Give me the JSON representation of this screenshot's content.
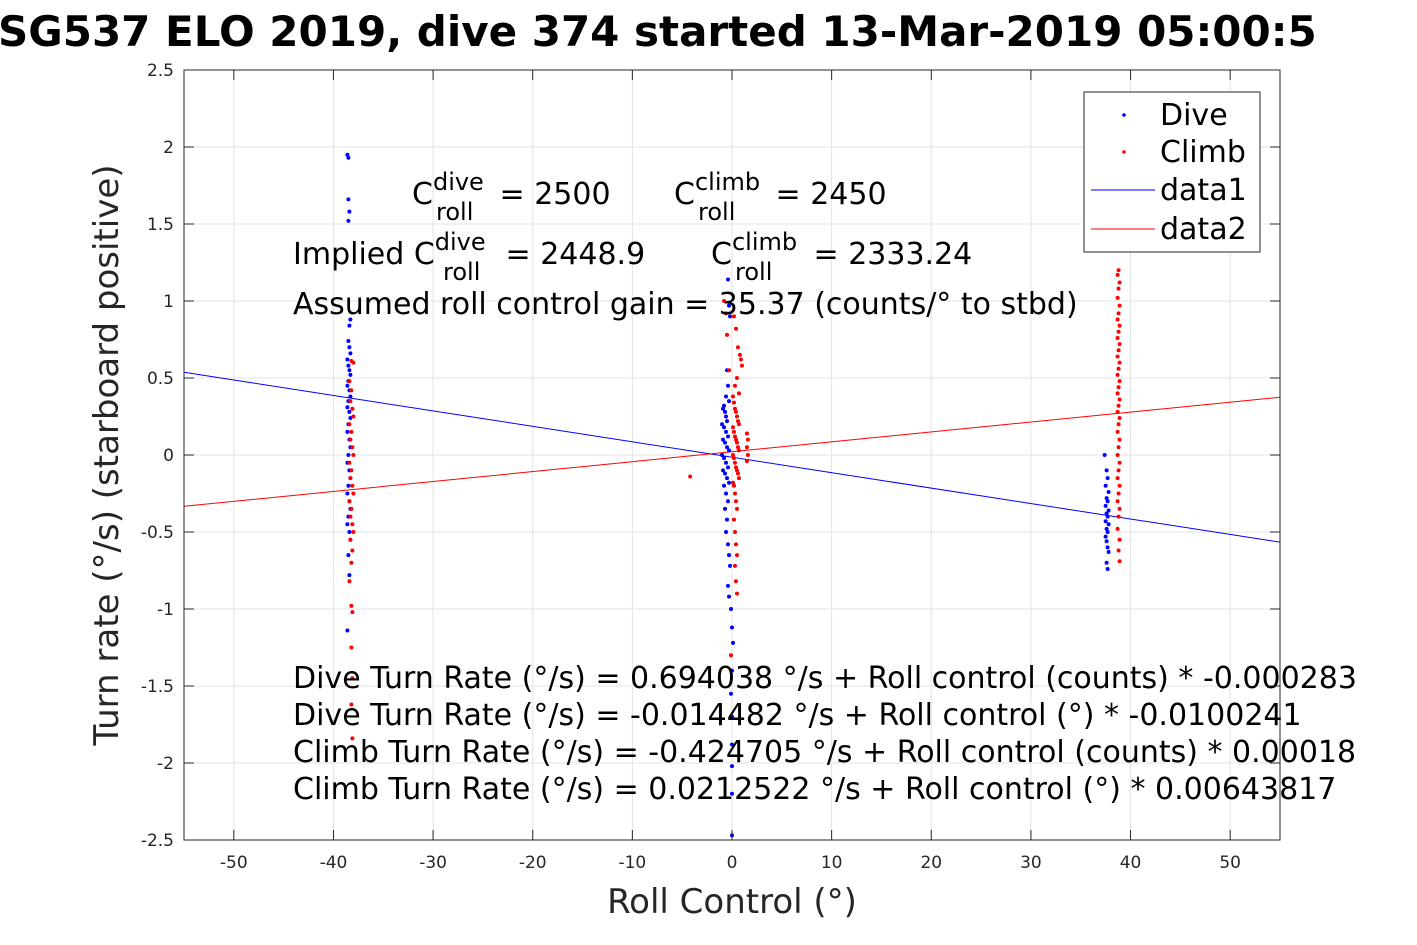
{
  "chart_data": {
    "type": "scatter",
    "title": "SG537 ELO 2019, dive 374 started 13-Mar-2019 05:00:5",
    "xlabel": "Roll Control (°)",
    "ylabel": "Turn rate (°/s) (starboard positive)",
    "xlim": [
      -55,
      55
    ],
    "ylim": [
      -2.5,
      2.5
    ],
    "xticks": [
      -50,
      -40,
      -30,
      -20,
      -10,
      0,
      10,
      20,
      30,
      40,
      50
    ],
    "xtick_labels": [
      "-50",
      "-40",
      "-30",
      "-20",
      "-10",
      "0",
      "10",
      "20",
      "30",
      "40",
      "50"
    ],
    "yticks": [
      -2.5,
      -2,
      -1.5,
      -1,
      -0.5,
      0,
      0.5,
      1,
      1.5,
      2,
      2.5
    ],
    "ytick_labels": [
      "-2.5",
      "-2",
      "-1.5",
      "-1",
      "-0.5",
      "0",
      "0.5",
      "1",
      "1.5",
      "2",
      "2.5"
    ],
    "grid": true,
    "legend_position": "top-right",
    "colors": {
      "dive": "#0000ff",
      "climb": "#ff0000"
    },
    "series": [
      {
        "name": "Dive",
        "style": "points",
        "color": "#0000ff",
        "points": [
          [
            -38.6,
            1.95
          ],
          [
            -38.5,
            1.93
          ],
          [
            -38.5,
            1.66
          ],
          [
            -38.4,
            1.58
          ],
          [
            -38.5,
            1.52
          ],
          [
            -38.3,
            0.88
          ],
          [
            -38.4,
            0.84
          ],
          [
            -38.5,
            0.74
          ],
          [
            -38.4,
            0.7
          ],
          [
            -38.3,
            0.66
          ],
          [
            -38.6,
            0.62
          ],
          [
            -38.5,
            0.58
          ],
          [
            -38.4,
            0.55
          ],
          [
            -38.3,
            0.52
          ],
          [
            -38.5,
            0.48
          ],
          [
            -38.6,
            0.45
          ],
          [
            -38.4,
            0.42
          ],
          [
            -38.3,
            0.38
          ],
          [
            -38.5,
            0.35
          ],
          [
            -38.6,
            0.31
          ],
          [
            -38.4,
            0.28
          ],
          [
            -38.3,
            0.24
          ],
          [
            -38.5,
            0.2
          ],
          [
            -38.6,
            0.15
          ],
          [
            -38.4,
            0.1
          ],
          [
            -38.3,
            0.05
          ],
          [
            -38.5,
            0.0
          ],
          [
            -38.6,
            -0.05
          ],
          [
            -38.4,
            -0.1
          ],
          [
            -38.3,
            -0.15
          ],
          [
            -38.5,
            -0.2
          ],
          [
            -38.6,
            -0.25
          ],
          [
            -38.4,
            -0.3
          ],
          [
            -38.3,
            -0.35
          ],
          [
            -38.5,
            -0.4
          ],
          [
            -38.6,
            -0.45
          ],
          [
            -38.4,
            -0.5
          ],
          [
            -38.3,
            -0.55
          ],
          [
            -38.5,
            -0.65
          ],
          [
            -38.4,
            -0.78
          ],
          [
            -38.6,
            -1.14
          ],
          [
            -0.4,
            1.14
          ],
          [
            -0.3,
            0.97
          ],
          [
            -0.2,
            0.9
          ],
          [
            -0.5,
            0.55
          ],
          [
            -0.4,
            0.45
          ],
          [
            -0.6,
            0.38
          ],
          [
            -0.3,
            0.35
          ],
          [
            -0.8,
            0.32
          ],
          [
            -0.9,
            0.3
          ],
          [
            -0.7,
            0.28
          ],
          [
            -0.6,
            0.25
          ],
          [
            -0.5,
            0.22
          ],
          [
            -1.0,
            0.2
          ],
          [
            -0.8,
            0.18
          ],
          [
            -0.6,
            0.15
          ],
          [
            -0.4,
            0.12
          ],
          [
            -0.9,
            0.1
          ],
          [
            -0.7,
            0.08
          ],
          [
            -0.5,
            0.05
          ],
          [
            -0.3,
            0.03
          ],
          [
            -1.0,
            0.0
          ],
          [
            -0.8,
            -0.02
          ],
          [
            -0.6,
            -0.05
          ],
          [
            -0.4,
            -0.08
          ],
          [
            -0.9,
            -0.1
          ],
          [
            -0.7,
            -0.12
          ],
          [
            -0.5,
            -0.15
          ],
          [
            -0.3,
            -0.18
          ],
          [
            -0.8,
            -0.2
          ],
          [
            -0.6,
            -0.25
          ],
          [
            -0.4,
            -0.3
          ],
          [
            -0.7,
            -0.35
          ],
          [
            -0.5,
            -0.42
          ],
          [
            -0.6,
            -0.5
          ],
          [
            -0.4,
            -0.58
          ],
          [
            -0.3,
            -0.65
          ],
          [
            -0.2,
            -0.72
          ],
          [
            -0.4,
            -0.85
          ],
          [
            -0.3,
            -0.92
          ],
          [
            -0.1,
            -1.0
          ],
          [
            0.0,
            -1.12
          ],
          [
            0.1,
            -1.22
          ],
          [
            0.0,
            -1.4
          ],
          [
            -0.1,
            -1.55
          ],
          [
            0.0,
            -1.7
          ],
          [
            0.0,
            -1.88
          ],
          [
            0.0,
            -2.02
          ],
          [
            0.0,
            -2.2
          ],
          [
            0.0,
            -2.47
          ],
          [
            37.4,
            0.0
          ],
          [
            37.6,
            -0.1
          ],
          [
            37.7,
            -0.15
          ],
          [
            37.5,
            -0.2
          ],
          [
            37.8,
            -0.24
          ],
          [
            37.6,
            -0.28
          ],
          [
            37.7,
            -0.3
          ],
          [
            37.5,
            -0.33
          ],
          [
            37.8,
            -0.36
          ],
          [
            37.6,
            -0.38
          ],
          [
            37.7,
            -0.4
          ],
          [
            37.5,
            -0.43
          ],
          [
            37.8,
            -0.45
          ],
          [
            37.6,
            -0.48
          ],
          [
            37.7,
            -0.5
          ],
          [
            37.5,
            -0.53
          ],
          [
            37.6,
            -0.56
          ],
          [
            37.7,
            -0.6
          ],
          [
            37.8,
            -0.63
          ],
          [
            37.6,
            -0.7
          ],
          [
            37.7,
            -0.74
          ]
        ]
      },
      {
        "name": "Climb",
        "style": "points",
        "color": "#ff0000",
        "points": [
          [
            -38.2,
            0.61
          ],
          [
            -38.0,
            0.6
          ],
          [
            -38.4,
            0.48
          ],
          [
            -38.2,
            0.42
          ],
          [
            -38.3,
            0.35
          ],
          [
            -38.1,
            0.3
          ],
          [
            -38.0,
            0.25
          ],
          [
            -38.4,
            0.2
          ],
          [
            -38.2,
            0.15
          ],
          [
            -38.3,
            0.1
          ],
          [
            -38.1,
            0.05
          ],
          [
            -38.0,
            0.0
          ],
          [
            -38.4,
            -0.05
          ],
          [
            -38.2,
            -0.1
          ],
          [
            -38.3,
            -0.15
          ],
          [
            -38.1,
            -0.2
          ],
          [
            -38.0,
            -0.25
          ],
          [
            -38.4,
            -0.3
          ],
          [
            -38.2,
            -0.35
          ],
          [
            -38.3,
            -0.4
          ],
          [
            -38.1,
            -0.45
          ],
          [
            -38.0,
            -0.5
          ],
          [
            -38.3,
            -0.55
          ],
          [
            -38.1,
            -0.62
          ],
          [
            -38.2,
            -0.7
          ],
          [
            -38.4,
            -0.82
          ],
          [
            -38.2,
            -0.98
          ],
          [
            -38.1,
            -1.02
          ],
          [
            -38.2,
            -1.25
          ],
          [
            -38.1,
            -1.45
          ],
          [
            -38.2,
            -1.62
          ],
          [
            -38.1,
            -1.84
          ],
          [
            -0.8,
            1.0
          ],
          [
            -0.6,
            0.92
          ],
          [
            0.2,
            0.9
          ],
          [
            0.4,
            0.82
          ],
          [
            -0.5,
            0.78
          ],
          [
            0.6,
            0.7
          ],
          [
            0.8,
            0.65
          ],
          [
            0.9,
            0.62
          ],
          [
            1.0,
            0.58
          ],
          [
            -0.3,
            0.55
          ],
          [
            0.5,
            0.5
          ],
          [
            0.3,
            0.45
          ],
          [
            0.7,
            0.4
          ],
          [
            0.1,
            0.38
          ],
          [
            0.2,
            0.34
          ],
          [
            0.3,
            0.3
          ],
          [
            0.4,
            0.28
          ],
          [
            0.5,
            0.25
          ],
          [
            0.6,
            0.22
          ],
          [
            0.7,
            0.2
          ],
          [
            0.1,
            0.18
          ],
          [
            0.2,
            0.15
          ],
          [
            0.3,
            0.12
          ],
          [
            1.5,
            0.14
          ],
          [
            1.6,
            0.1
          ],
          [
            1.5,
            0.05
          ],
          [
            1.6,
            0.0
          ],
          [
            1.5,
            -0.04
          ],
          [
            0.4,
            0.1
          ],
          [
            0.5,
            0.08
          ],
          [
            0.6,
            0.05
          ],
          [
            0.7,
            0.03
          ],
          [
            0.1,
            0.0
          ],
          [
            0.2,
            -0.02
          ],
          [
            0.3,
            -0.05
          ],
          [
            0.4,
            -0.08
          ],
          [
            0.5,
            -0.1
          ],
          [
            0.6,
            -0.12
          ],
          [
            0.7,
            -0.15
          ],
          [
            0.1,
            -0.18
          ],
          [
            0.2,
            -0.2
          ],
          [
            0.3,
            -0.25
          ],
          [
            0.4,
            -0.3
          ],
          [
            0.5,
            -0.35
          ],
          [
            0.2,
            -0.42
          ],
          [
            0.3,
            -0.5
          ],
          [
            0.4,
            -0.58
          ],
          [
            0.5,
            -0.65
          ],
          [
            0.3,
            -0.72
          ],
          [
            0.4,
            -0.82
          ],
          [
            0.5,
            -0.9
          ],
          [
            -0.1,
            -1.3
          ],
          [
            -4.2,
            -0.14
          ],
          [
            38.8,
            1.2
          ],
          [
            38.7,
            1.17
          ],
          [
            38.9,
            1.12
          ],
          [
            38.8,
            1.08
          ],
          [
            38.7,
            1.02
          ],
          [
            38.9,
            0.97
          ],
          [
            38.8,
            0.92
          ],
          [
            38.7,
            0.88
          ],
          [
            38.9,
            0.84
          ],
          [
            38.8,
            0.8
          ],
          [
            38.7,
            0.76
          ],
          [
            38.9,
            0.72
          ],
          [
            38.8,
            0.68
          ],
          [
            38.7,
            0.64
          ],
          [
            38.9,
            0.6
          ],
          [
            38.8,
            0.56
          ],
          [
            38.7,
            0.52
          ],
          [
            38.9,
            0.48
          ],
          [
            38.8,
            0.44
          ],
          [
            38.7,
            0.4
          ],
          [
            38.9,
            0.36
          ],
          [
            38.8,
            0.32
          ],
          [
            38.7,
            0.28
          ],
          [
            38.9,
            0.24
          ],
          [
            38.8,
            0.2
          ],
          [
            38.7,
            0.15
          ],
          [
            38.9,
            0.1
          ],
          [
            38.8,
            0.05
          ],
          [
            38.7,
            0.0
          ],
          [
            38.9,
            -0.05
          ],
          [
            38.8,
            -0.1
          ],
          [
            38.7,
            -0.15
          ],
          [
            38.9,
            -0.2
          ],
          [
            38.8,
            -0.25
          ],
          [
            38.7,
            -0.3
          ],
          [
            38.9,
            -0.35
          ],
          [
            38.8,
            -0.4
          ],
          [
            38.7,
            -0.48
          ],
          [
            38.9,
            -0.55
          ],
          [
            38.8,
            -0.62
          ],
          [
            38.9,
            -0.69
          ]
        ]
      },
      {
        "name": "data1",
        "style": "line",
        "color": "#0000ff",
        "points": [
          [
            -55,
            0.537
          ],
          [
            55,
            -0.566
          ]
        ]
      },
      {
        "name": "data2",
        "style": "line",
        "color": "#ff0000",
        "points": [
          [
            -55,
            -0.333
          ],
          [
            55,
            0.375
          ]
        ]
      }
    ],
    "annotations": {
      "c_roll_dive": {
        "base": "C",
        "sup": "dive",
        "sub": "roll",
        "value": " = 2500"
      },
      "c_roll_climb": {
        "base": "C",
        "sup": "climb",
        "sub": "roll",
        "value": " = 2450"
      },
      "implied_prefix": "Implied ",
      "implied_dive": {
        "base": "C",
        "sup": "dive",
        "sub": "roll",
        "value": " = 2448.9"
      },
      "implied_climb": {
        "base": "C",
        "sup": "climb",
        "sub": "roll",
        "value": " = 2333.24"
      },
      "gain": "Assumed roll control gain = 35.37 (counts/° to stbd)",
      "fit_lines": [
        "Dive Turn Rate (°/s) = 0.694038 °/s + Roll control (counts) * -0.000283",
        "Dive Turn Rate (°/s) = -0.014482 °/s + Roll control (°) * -0.0100241",
        "Climb Turn Rate (°/s) = -0.424705 °/s + Roll control (counts) * 0.00018",
        "Climb Turn Rate (°/s) = 0.0212522 °/s + Roll control (°) * 0.00643817"
      ]
    }
  }
}
